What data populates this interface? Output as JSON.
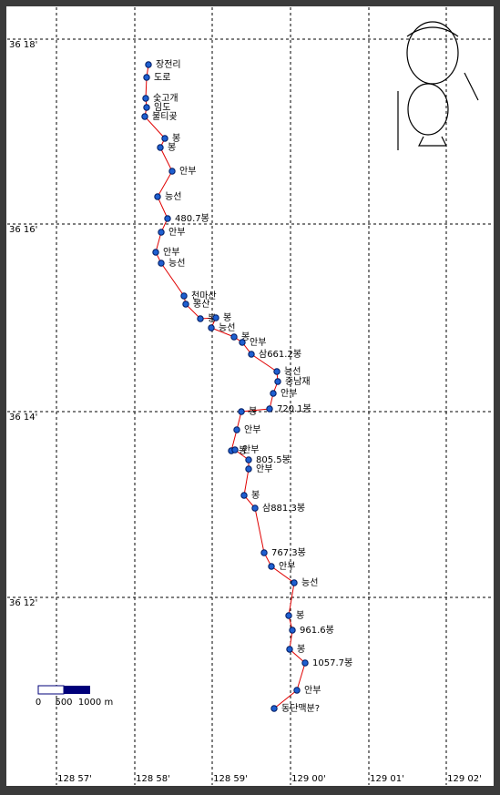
{
  "map": {
    "lat_labels": [
      "36 18'",
      "36 16'",
      "36 14'",
      "36 12'"
    ],
    "lon_labels": [
      "128 57'",
      "128 58'",
      "128 59'",
      "129 00'",
      "129 01'",
      "129 02'"
    ],
    "waypoints": [
      "장전리",
      "도로",
      "숯고개",
      "임도",
      "불티곶",
      "봉",
      "봉",
      "안부",
      "능선",
      "480.7봉",
      "안부",
      "안부",
      "능선",
      "천마산",
      "봉산",
      "봉",
      "봉",
      "능선",
      "봉",
      "안부",
      "삼661.2봉",
      "능선",
      "중남재",
      "안부",
      "720.1봉",
      "봉",
      "안부",
      "봉",
      "안부",
      "805.5봉",
      "안부",
      "봉",
      "삼881.3봉",
      "767.3봉",
      "안부",
      "능선",
      "봉",
      "961.6봉",
      "봉",
      "1057.7봉",
      "안부",
      "동단맥분?"
    ],
    "scale_labels": [
      "0",
      "500",
      "1000 m"
    ]
  }
}
